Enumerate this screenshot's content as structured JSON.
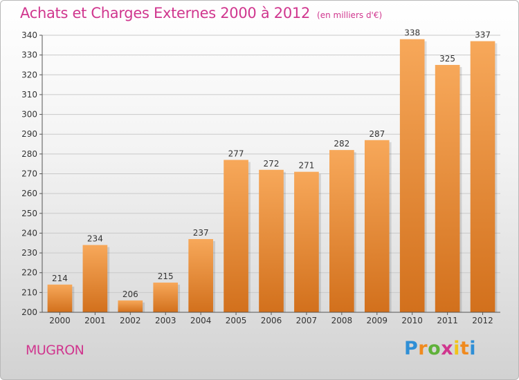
{
  "header": {
    "title": "Achats et Charges Externes 2000 à 2012",
    "unit": "(en milliers d'€)"
  },
  "footer": {
    "commune": "MUGRON",
    "brand_letters": [
      "P",
      "r",
      "o",
      "x",
      "i",
      "t",
      "i"
    ]
  },
  "colors": {
    "title": "#d0368e",
    "bar_top": "#f7a85a",
    "bar_bottom": "#d2701c",
    "gridline": "#c9c9c9"
  },
  "chart_data": {
    "type": "bar",
    "title": "Achats et Charges Externes 2000 à 2012",
    "xlabel": "",
    "ylabel": "",
    "categories": [
      "2000",
      "2001",
      "2002",
      "2003",
      "2004",
      "2005",
      "2006",
      "2007",
      "2008",
      "2009",
      "2010",
      "2011",
      "2012"
    ],
    "values": [
      214,
      234,
      206,
      215,
      237,
      277,
      272,
      271,
      282,
      287,
      338,
      325,
      337
    ],
    "ylim": [
      200,
      340
    ],
    "yticks": [
      200,
      210,
      220,
      230,
      240,
      250,
      260,
      270,
      280,
      290,
      300,
      310,
      320,
      330,
      340
    ],
    "grid": true,
    "data_labels": true
  }
}
